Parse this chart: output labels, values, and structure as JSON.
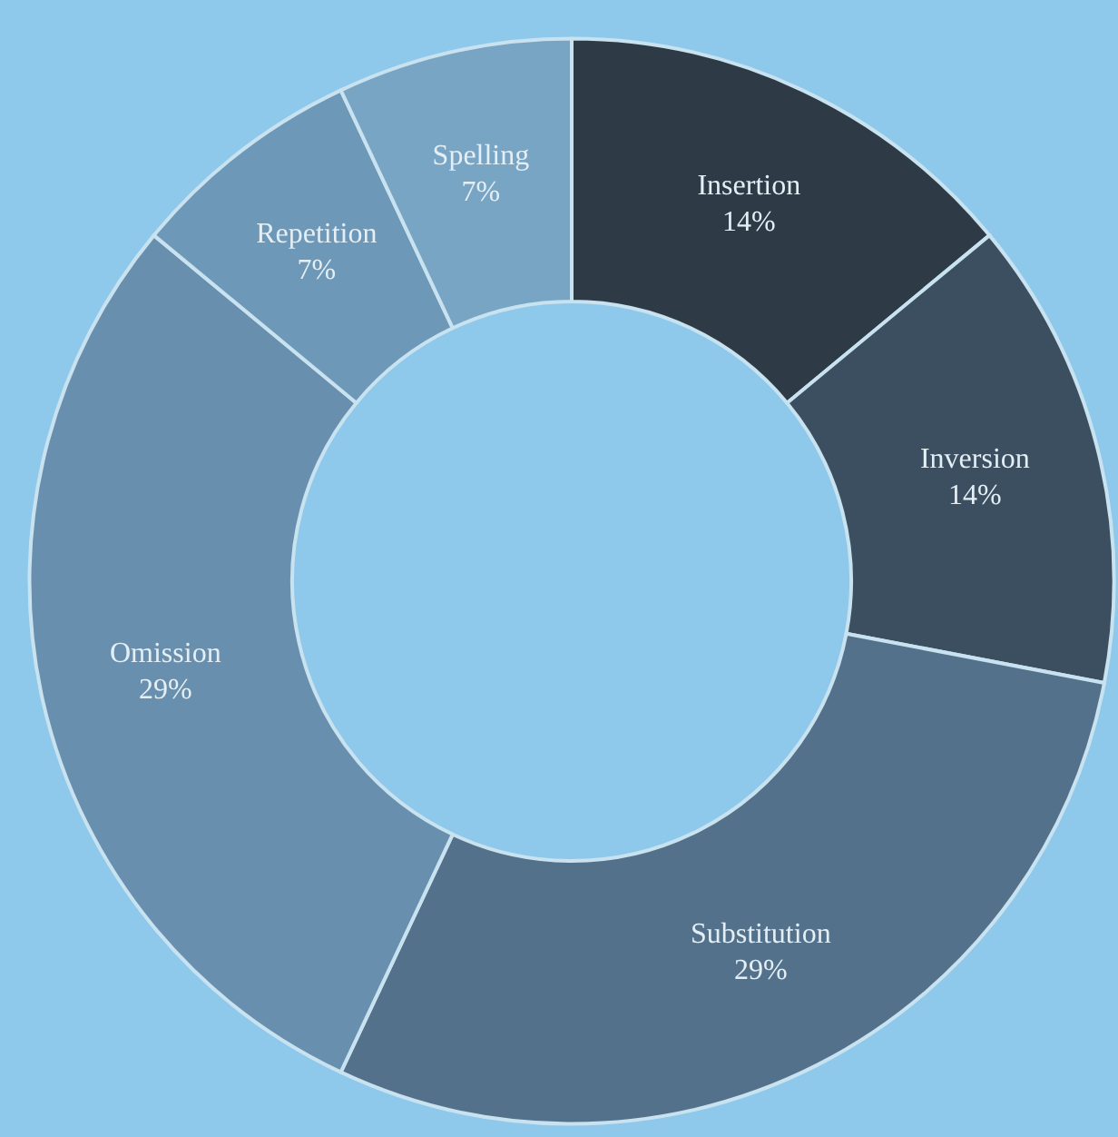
{
  "chart_data": {
    "type": "donut",
    "categories": [
      "Insertion",
      "Inversion",
      "Substitution",
      "Omission",
      "Repetition",
      "Spelling"
    ],
    "values": [
      14,
      14,
      29,
      29,
      7,
      7
    ],
    "value_labels": [
      "14%",
      "14%",
      "29%",
      "29%",
      "7%",
      "7%"
    ],
    "colors": [
      "#2e3b47",
      "#3b4f61",
      "#53718b",
      "#6890ae",
      "#6e98b8",
      "#79a5c5"
    ],
    "legend": false
  }
}
